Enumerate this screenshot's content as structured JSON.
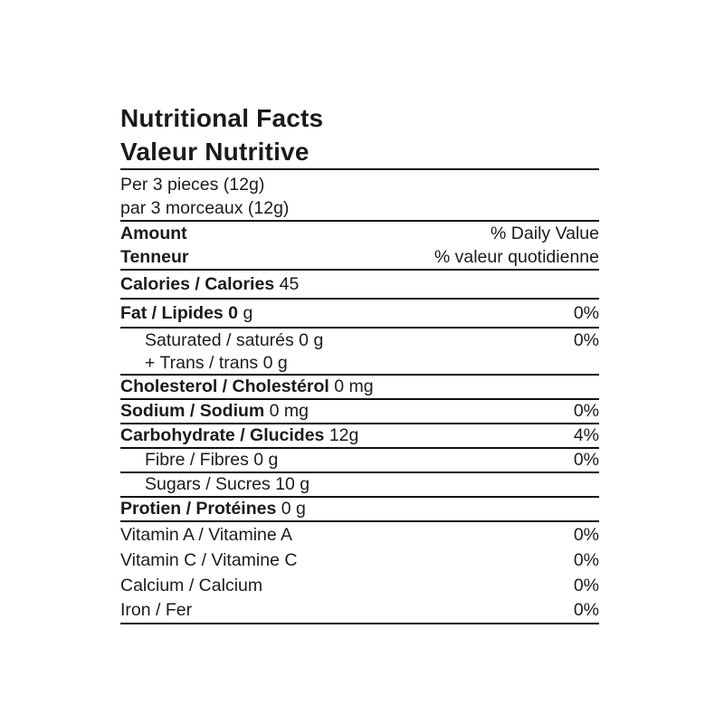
{
  "page": {
    "background": "#ffffff"
  },
  "label": {
    "colors": {
      "text": "#1b1b1b",
      "rule": "#101010"
    },
    "title_en": "Nutritional Facts",
    "title_fr": "Valeur Nutritive",
    "serving_en": "Per 3 pieces (12g)",
    "serving_fr": "par 3 morceaux (12g)",
    "header": {
      "amount_en": "Amount",
      "amount_fr": "Tenneur",
      "daily_value_en": "% Daily Value",
      "daily_value_fr": "% valeur quotidienne"
    },
    "rows": [
      {
        "bold": "Calories / Calories",
        "regular": "45",
        "percent": ""
      },
      {
        "bold": "Fat / Lipides 0",
        "regular": "g",
        "percent": "0%"
      },
      {
        "bold": "",
        "regular": "Saturated / saturés 0 g",
        "percent": "0%"
      },
      {
        "bold": "",
        "regular": "+ Trans / trans 0 g",
        "percent": ""
      },
      {
        "bold": "Cholesterol / Cholestérol",
        "regular": "0 mg",
        "percent": ""
      },
      {
        "bold": "Sodium / Sodium",
        "regular": "0 mg",
        "percent": "0%"
      },
      {
        "bold": "Carbohydrate / Glucides",
        "regular": "12g",
        "percent": "4%"
      },
      {
        "bold": "",
        "regular": "Fibre / Fibres 0 g",
        "percent": "0%"
      },
      {
        "bold": "",
        "regular": "Sugars / Sucres 10 g",
        "percent": ""
      },
      {
        "bold": "Protien / Protéines",
        "regular": "0 g",
        "percent": ""
      },
      {
        "bold": "",
        "regular": "Vitamin A / Vitamine A",
        "percent": "0%"
      },
      {
        "bold": "",
        "regular": "Vitamin C / Vitamine C",
        "percent": "0%"
      },
      {
        "bold": "",
        "regular": "Calcium / Calcium",
        "percent": "0%"
      },
      {
        "bold": "",
        "regular": "Iron / Fer",
        "percent": "0%"
      }
    ]
  }
}
